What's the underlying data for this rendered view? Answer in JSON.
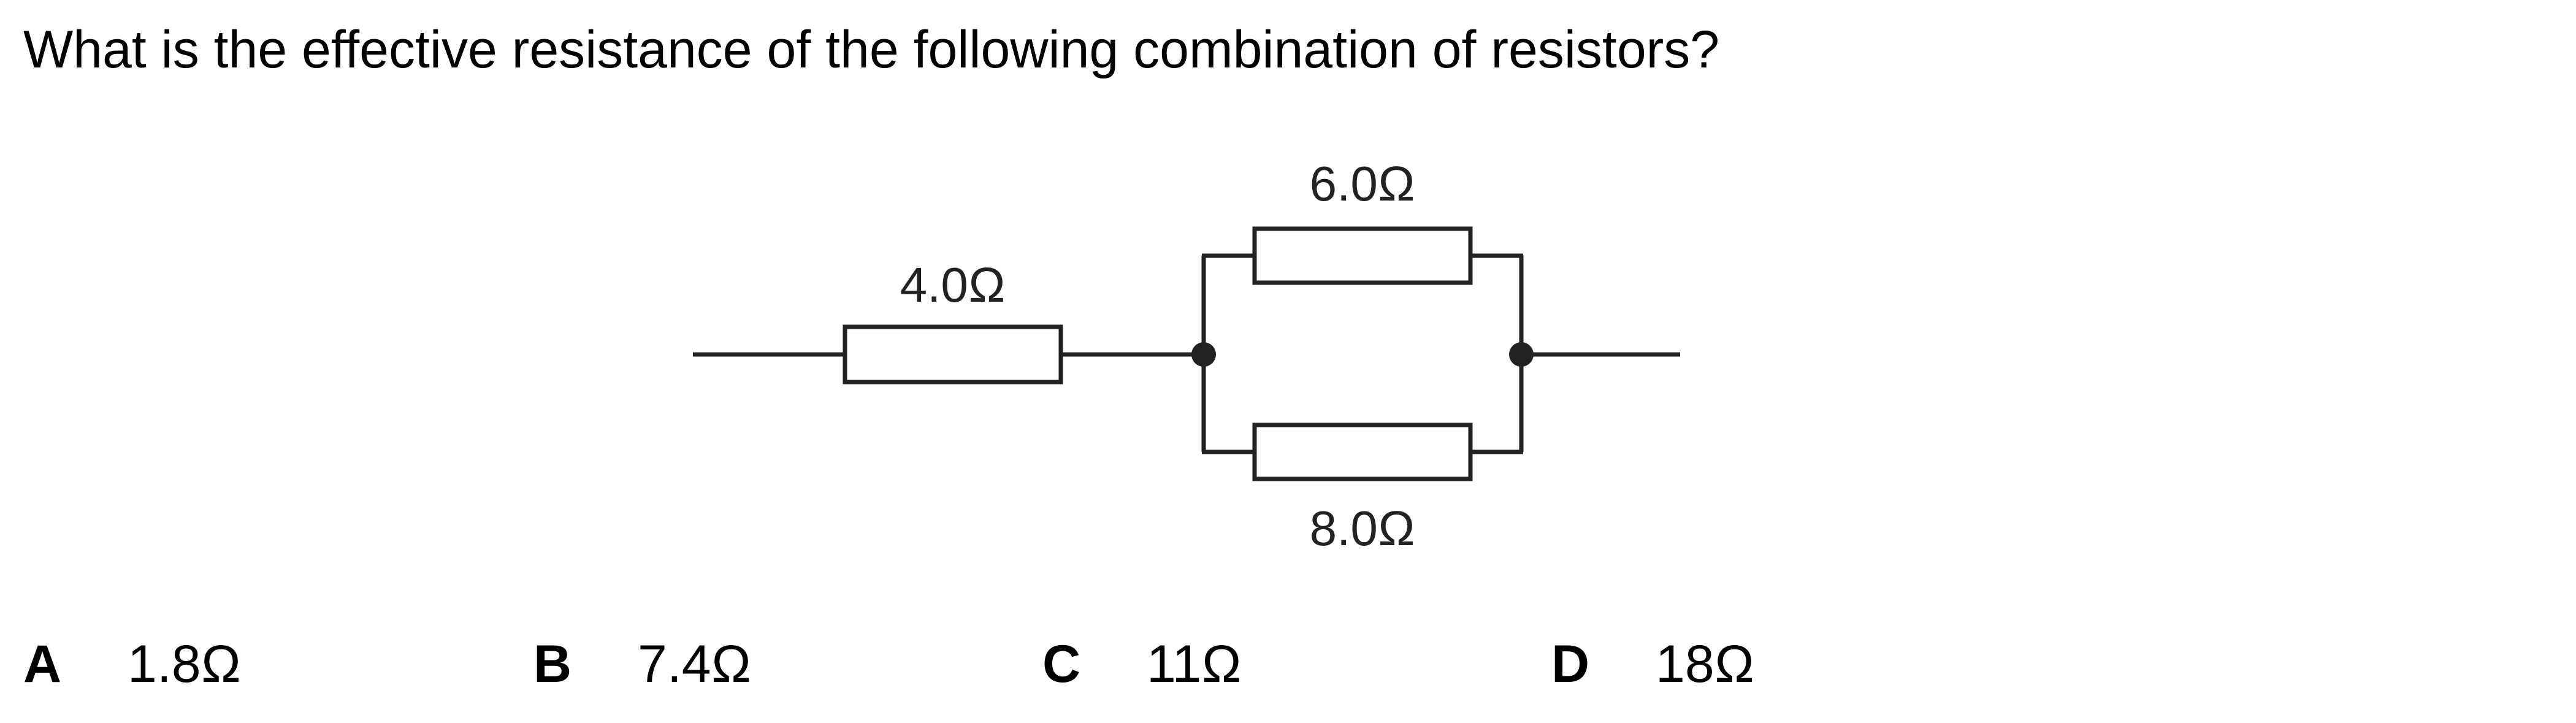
{
  "question": {
    "text": "What is the effective resistance of the following combination of resistors?"
  },
  "circuit": {
    "resistors": {
      "series": {
        "label": "4.0Ω"
      },
      "parallel_top": {
        "label": "6.0Ω"
      },
      "parallel_bottom": {
        "label": "8.0Ω"
      }
    }
  },
  "options": [
    {
      "letter": "A",
      "value": "1.8Ω"
    },
    {
      "letter": "B",
      "value": "7.4Ω"
    },
    {
      "letter": "C",
      "value": "11Ω"
    },
    {
      "letter": "D",
      "value": "18Ω"
    }
  ]
}
